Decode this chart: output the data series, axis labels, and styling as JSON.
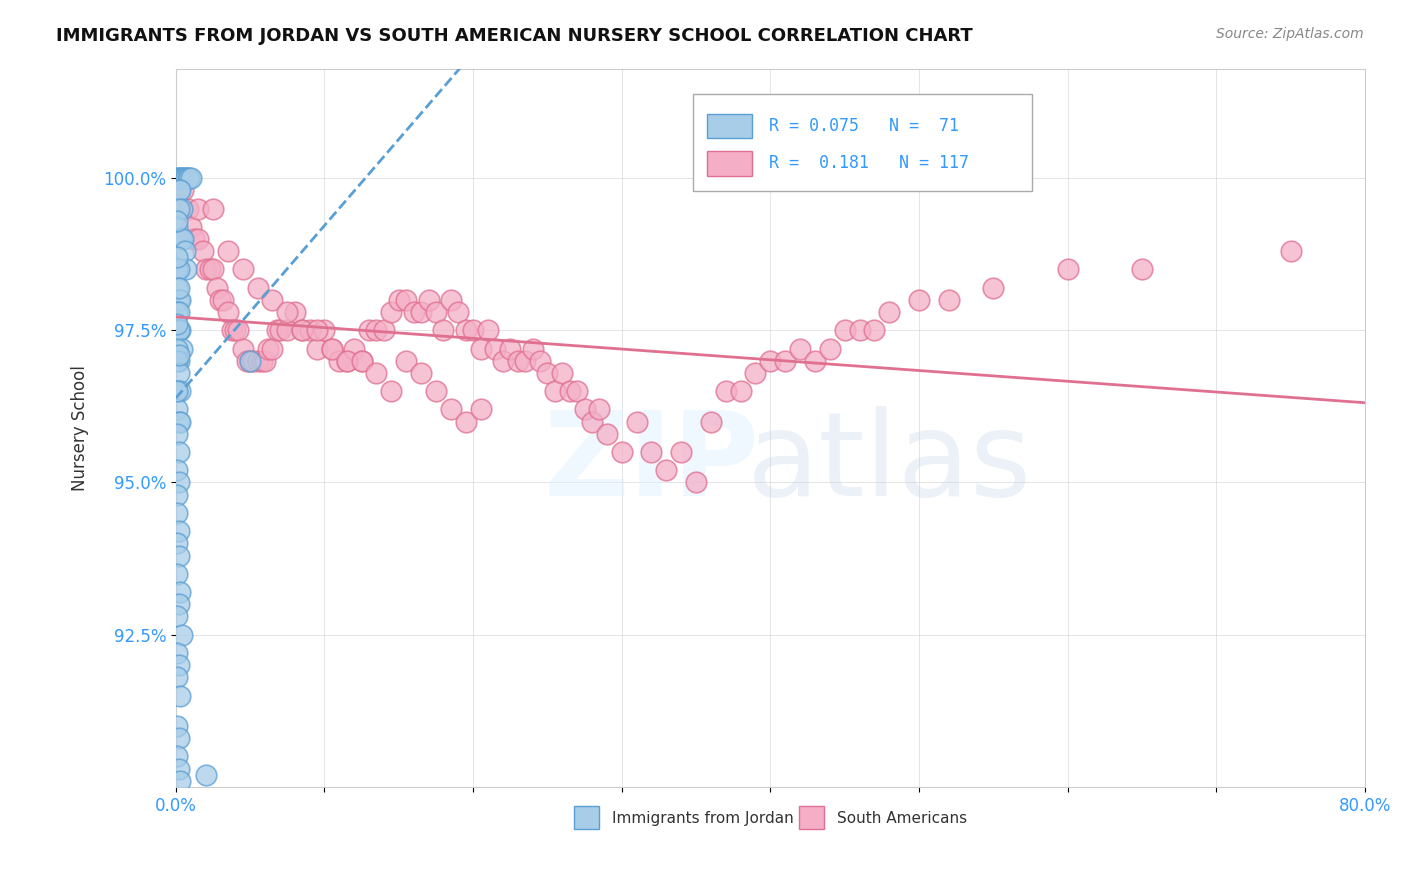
{
  "title": "IMMIGRANTS FROM JORDAN VS SOUTH AMERICAN NURSERY SCHOOL CORRELATION CHART",
  "source": "Source: ZipAtlas.com",
  "ylabel": "Nursery School",
  "xlim": [
    0.0,
    80.0
  ],
  "ylim": [
    90.0,
    101.8
  ],
  "yticks": [
    92.5,
    95.0,
    97.5,
    100.0
  ],
  "ytick_labels": [
    "92.5%",
    "95.0%",
    "97.5%",
    "100.0%"
  ],
  "xtick_positions": [
    0.0,
    10.0,
    20.0,
    30.0,
    40.0,
    50.0,
    60.0,
    70.0,
    80.0
  ],
  "jordan_R": 0.075,
  "jordan_N": 71,
  "south_am_R": 0.181,
  "south_am_N": 117,
  "jordan_color": "#a8cde8",
  "south_am_color": "#f4afc7",
  "jordan_edge_color": "#5a9fd4",
  "south_am_edge_color": "#e07090",
  "trend_jordan_color": "#5a9fd4",
  "trend_south_am_color": "#e07090",
  "legend_jordan_label": "Immigrants from Jordan",
  "legend_south_am_label": "South Americans",
  "watermark_zip": "ZIP",
  "watermark_atlas": "atlas",
  "background_color": "#ffffff",
  "jordan_x": [
    0.1,
    0.2,
    0.3,
    0.4,
    0.5,
    0.6,
    0.7,
    0.8,
    0.9,
    1.0,
    0.2,
    0.3,
    0.4,
    0.2,
    0.1,
    0.3,
    0.4,
    0.5,
    0.6,
    0.7,
    0.1,
    0.2,
    0.1,
    0.2,
    0.3,
    0.1,
    0.2,
    0.1,
    0.3,
    0.2,
    0.4,
    0.1,
    0.2,
    0.1,
    0.2,
    0.1,
    0.3,
    0.1,
    0.2,
    0.3,
    0.1,
    0.2,
    5.0,
    0.1,
    0.2,
    0.1,
    0.1,
    0.2,
    0.1,
    0.2,
    0.1,
    0.3,
    0.2,
    0.1,
    0.4,
    0.1,
    0.2,
    0.1,
    0.3,
    2.0,
    0.1,
    0.2,
    0.1,
    0.2,
    0.3,
    0.1,
    0.1,
    0.2,
    0.1,
    0.2,
    0.1
  ],
  "jordan_y": [
    100.0,
    100.0,
    100.0,
    100.0,
    100.0,
    100.0,
    100.0,
    100.0,
    100.0,
    100.0,
    99.8,
    99.8,
    99.5,
    99.5,
    99.2,
    99.0,
    99.0,
    99.0,
    98.8,
    98.5,
    98.5,
    98.5,
    98.2,
    98.0,
    98.0,
    97.8,
    97.8,
    97.5,
    97.5,
    97.5,
    97.2,
    97.2,
    97.0,
    97.0,
    96.8,
    96.5,
    96.5,
    96.2,
    96.0,
    96.0,
    95.8,
    95.5,
    97.0,
    95.2,
    95.0,
    94.8,
    94.5,
    94.2,
    94.0,
    93.8,
    93.5,
    93.2,
    93.0,
    92.8,
    92.5,
    92.2,
    92.0,
    91.8,
    91.5,
    90.2,
    91.0,
    90.8,
    90.5,
    90.3,
    90.1,
    99.3,
    98.7,
    98.2,
    97.6,
    97.1,
    96.5
  ],
  "south_am_x": [
    0.3,
    0.5,
    0.8,
    1.0,
    1.2,
    1.5,
    1.8,
    2.0,
    2.3,
    2.5,
    2.8,
    3.0,
    3.2,
    3.5,
    3.8,
    4.0,
    4.2,
    4.5,
    4.8,
    5.0,
    5.2,
    5.5,
    5.8,
    6.0,
    6.2,
    6.5,
    6.8,
    7.0,
    7.5,
    8.0,
    8.5,
    9.0,
    9.5,
    10.0,
    10.5,
    11.0,
    11.5,
    12.0,
    12.5,
    13.0,
    13.5,
    14.0,
    14.5,
    15.0,
    15.5,
    16.0,
    16.5,
    17.0,
    17.5,
    18.0,
    18.5,
    19.0,
    19.5,
    20.0,
    20.5,
    21.0,
    21.5,
    22.0,
    22.5,
    23.0,
    23.5,
    24.0,
    24.5,
    25.0,
    25.5,
    26.0,
    26.5,
    27.0,
    27.5,
    28.0,
    28.5,
    29.0,
    30.0,
    31.0,
    32.0,
    33.0,
    34.0,
    35.0,
    36.0,
    37.0,
    38.0,
    39.0,
    40.0,
    41.0,
    42.0,
    43.0,
    44.0,
    45.0,
    46.0,
    47.0,
    48.0,
    50.0,
    52.0,
    55.0,
    60.0,
    65.0,
    75.0,
    1.5,
    2.5,
    3.5,
    4.5,
    5.5,
    6.5,
    7.5,
    8.5,
    9.5,
    10.5,
    11.5,
    12.5,
    13.5,
    14.5,
    15.5,
    16.5,
    17.5,
    18.5,
    19.5,
    20.5
  ],
  "south_am_y": [
    99.5,
    99.8,
    99.5,
    99.2,
    99.0,
    99.0,
    98.8,
    98.5,
    98.5,
    98.5,
    98.2,
    98.0,
    98.0,
    97.8,
    97.5,
    97.5,
    97.5,
    97.2,
    97.0,
    97.0,
    97.0,
    97.0,
    97.0,
    97.0,
    97.2,
    97.2,
    97.5,
    97.5,
    97.5,
    97.8,
    97.5,
    97.5,
    97.2,
    97.5,
    97.2,
    97.0,
    97.0,
    97.2,
    97.0,
    97.5,
    97.5,
    97.5,
    97.8,
    98.0,
    98.0,
    97.8,
    97.8,
    98.0,
    97.8,
    97.5,
    98.0,
    97.8,
    97.5,
    97.5,
    97.2,
    97.5,
    97.2,
    97.0,
    97.2,
    97.0,
    97.0,
    97.2,
    97.0,
    96.8,
    96.5,
    96.8,
    96.5,
    96.5,
    96.2,
    96.0,
    96.2,
    95.8,
    95.5,
    96.0,
    95.5,
    95.2,
    95.5,
    95.0,
    96.0,
    96.5,
    96.5,
    96.8,
    97.0,
    97.0,
    97.2,
    97.0,
    97.2,
    97.5,
    97.5,
    97.5,
    97.8,
    98.0,
    98.0,
    98.2,
    98.5,
    98.5,
    98.8,
    99.5,
    99.5,
    98.8,
    98.5,
    98.2,
    98.0,
    97.8,
    97.5,
    97.5,
    97.2,
    97.0,
    97.0,
    96.8,
    96.5,
    97.0,
    96.8,
    96.5,
    96.2,
    96.0,
    96.2
  ]
}
